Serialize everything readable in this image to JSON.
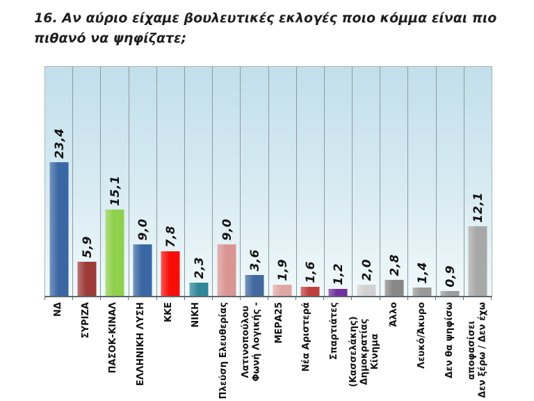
{
  "chart_data": {
    "type": "bar",
    "title": "16. Αν αύριο είχαμε βουλευτικές εκλογές ποιο κόμμα είναι πιο πιθανό να ψηφίζατε;",
    "xlabel": "",
    "ylabel": "",
    "ylim": [
      0,
      40
    ],
    "grid": "vertical-gridlines-between-categories",
    "legend": "none",
    "value_label_style": "rotated 90° bottom-up, bold italic, decimal comma",
    "category_label_style": "rotated 90° bottom-up, bold",
    "categories": [
      "ΝΔ",
      "ΣΥΡΙΖΑ",
      "ΠΑΣΟΚ-ΚΙΝΑΛ",
      "ΕΛΛΗΝΙΚΗ ΛΥΣΗ",
      "ΚΚΕ",
      "ΝΙΚΗ",
      "Πλεύση Ελευθερίας",
      "Φωνή Λογικής -\nΛατινοπούλου",
      "ΜΕΡΑ25",
      "Νέα Αριστερά",
      "Σπαρτιάτες",
      "Κίνημα Δημοκρατίας\n(Κασσελάκης)",
      "Άλλο",
      "Λευκό/Άκυρο",
      "Δεν θα ψηφίσω",
      "Δεν ξέρω / Δεν έχω\nαποφασίσει"
    ],
    "values": [
      23.4,
      5.9,
      15.1,
      9.0,
      7.8,
      2.3,
      9.0,
      3.6,
      1.9,
      1.6,
      1.2,
      2.0,
      2.8,
      1.4,
      0.9,
      12.1
    ],
    "value_labels": [
      "23,4",
      "5,9",
      "15,1",
      "9,0",
      "7,8",
      "2,3",
      "9,0",
      "3,6",
      "1,9",
      "1,6",
      "1,2",
      "2,0",
      "2,8",
      "1,4",
      "0,9",
      "12,1"
    ],
    "bar_colors": [
      "#3a67a4",
      "#9c3a39",
      "#8fd04c",
      "#3a67a4",
      "#f90d09",
      "#2f8799",
      "#d99694",
      "#41699f",
      "#e0a6a4",
      "#bf403d",
      "#7030a0",
      "#d2d2d2",
      "#878787",
      "#999999",
      "#9c9c9c",
      "#a8a8a8"
    ],
    "plot_background_gradient": [
      "#c2dfeb",
      "#f1f9fb"
    ],
    "gridline_color": "#8d989d",
    "axis_color": "#5a676d",
    "title_color": "#1f1f1f"
  }
}
